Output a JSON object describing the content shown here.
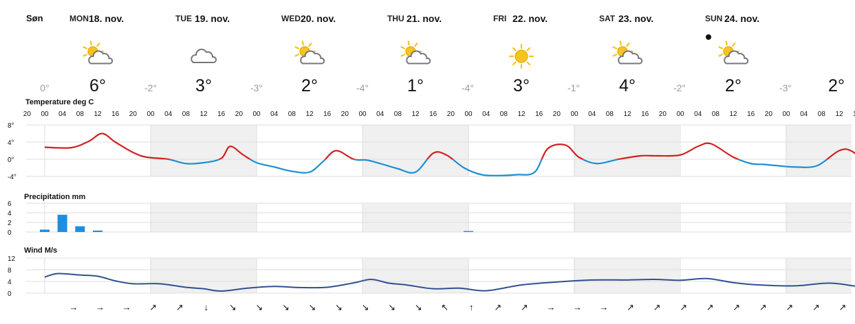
{
  "site_label": "Søn",
  "colors": {
    "temp_warm": "#d21f1f",
    "temp_cold": "#1e8fd0",
    "precip": "#1e8fe0",
    "wind": "#2f4f8f",
    "alt_band": "#f0f0f0",
    "grid": "#dedede",
    "sun": "#f7c320",
    "cloud": "#777777"
  },
  "days": [
    {
      "name": "MON",
      "date": "18. nov.",
      "icon": "partly-cloudy-icon",
      "min": "0°",
      "max": "6°"
    },
    {
      "name": "TUE",
      "date": "19. nov.",
      "icon": "cloud-icon",
      "min": "-2°",
      "max": "3°"
    },
    {
      "name": "WED",
      "date": "20. nov.",
      "icon": "partly-cloudy-icon",
      "min": "-3°",
      "max": "2°"
    },
    {
      "name": "THU",
      "date": "21. nov.",
      "icon": "partly-cloudy-icon",
      "min": "-4°",
      "max": "1°"
    },
    {
      "name": "FRI",
      "date": "22. nov.",
      "icon": "sun-icon",
      "min": "-4°",
      "max": "3°"
    },
    {
      "name": "SAT",
      "date": "23. nov.",
      "icon": "partly-cloudy-icon",
      "min": "-1°",
      "max": "4°"
    },
    {
      "name": "SUN",
      "date": "24. nov.",
      "icon": "partly-cloudy-icon",
      "min": "-2°",
      "max": "2°"
    }
  ],
  "extra_temp": {
    "min": "-3°",
    "max": "2°"
  },
  "hour_ticks": [
    "20",
    "00",
    "04",
    "08",
    "12",
    "16",
    "20",
    "00",
    "04",
    "08",
    "12",
    "16",
    "20",
    "00",
    "04",
    "08",
    "12",
    "16",
    "20",
    "00",
    "04",
    "08",
    "12",
    "16",
    "20",
    "00",
    "04",
    "08",
    "12",
    "16",
    "20",
    "00",
    "04",
    "08",
    "12",
    "16",
    "20",
    "00",
    "04",
    "08",
    "12",
    "16",
    "20",
    "00",
    "04",
    "08",
    "12",
    "16"
  ],
  "wind_directions": [
    "→",
    "→",
    "→",
    "↗",
    "↗",
    "↓",
    "↘",
    "↘",
    "↘",
    "↘",
    "↘",
    "↘",
    "↘",
    "↘",
    "↖",
    "↑",
    "↗",
    "↗",
    "→",
    "→",
    "→",
    "↗",
    "↗",
    "↗",
    "↗",
    "↗",
    "↗",
    "↗",
    "↗",
    "↗",
    "↗",
    "↑",
    "↑",
    "↘"
  ],
  "chart_data": [
    {
      "type": "line",
      "title": "Temperature deg C",
      "x_unit": "hours from 00:00 Mon 18. nov.",
      "ylim": [
        -4,
        8
      ],
      "yticks": [
        "8°",
        "4°",
        "0°",
        "-4°"
      ],
      "x": [
        -4,
        0,
        6,
        10,
        13,
        16,
        20,
        23,
        28,
        32,
        36,
        40,
        42,
        45,
        48,
        52,
        56,
        60,
        63,
        66,
        70,
        73,
        76,
        80,
        84,
        88,
        91,
        95,
        99,
        103,
        107,
        111,
        114,
        118,
        121,
        125,
        130,
        135,
        139,
        144,
        148,
        151,
        156,
        160,
        163,
        166,
        170,
        175,
        180,
        183,
        187,
        190,
        194,
        198,
        204,
        208,
        212
      ],
      "values": [
        2.5,
        2.8,
        2.7,
        4.2,
        6.0,
        4.0,
        1.6,
        0.5,
        0.0,
        -1.0,
        -0.8,
        0.2,
        3.0,
        1.0,
        -0.8,
        -1.8,
        -2.8,
        -3.0,
        -0.6,
        2.0,
        0.0,
        -0.2,
        -1.0,
        -2.2,
        -3.0,
        1.4,
        1.0,
        -2.0,
        -3.6,
        -3.8,
        -3.6,
        -3.0,
        2.5,
        3.3,
        0.5,
        -1.0,
        0.0,
        0.8,
        0.8,
        1.0,
        3.0,
        3.6,
        0.5,
        -1.0,
        -1.2,
        -1.5,
        -1.8,
        -1.5,
        2.0,
        1.8,
        -1.9,
        -2.2,
        -2.4,
        -2.6,
        -2.8,
        -1.2,
        1.8
      ]
    },
    {
      "type": "bar",
      "title": "Precipitation mm",
      "x_unit": "hours from 00:00 Mon 18. nov.",
      "ylim": [
        0,
        6
      ],
      "yticks": [
        "6",
        "4",
        "2",
        "0"
      ],
      "x": [
        -8,
        -4,
        0,
        4,
        8,
        12,
        96
      ],
      "values": [
        0.8,
        2.0,
        0.5,
        3.6,
        1.2,
        0.3,
        0.2
      ]
    },
    {
      "type": "line",
      "title": "Wind M/s",
      "x_unit": "hours from 00:00 Mon 18. nov.",
      "ylim": [
        0,
        12
      ],
      "yticks": [
        "12",
        "8",
        "4",
        "0"
      ],
      "x": [
        -8,
        -4,
        0,
        3,
        8,
        12,
        16,
        20,
        26,
        32,
        36,
        40,
        46,
        52,
        58,
        64,
        70,
        74,
        78,
        82,
        88,
        94,
        100,
        108,
        116,
        124,
        132,
        138,
        144,
        150,
        156,
        162,
        170,
        178,
        186,
        194,
        202,
        210
      ],
      "values": [
        8.0,
        6.5,
        5.5,
        6.7,
        6.2,
        5.8,
        4.2,
        3.2,
        3.2,
        2.0,
        1.5,
        0.7,
        1.7,
        2.3,
        1.9,
        2.0,
        3.5,
        4.7,
        3.4,
        2.8,
        1.5,
        1.7,
        0.8,
        2.8,
        3.8,
        4.5,
        4.5,
        4.7,
        4.4,
        5.0,
        3.6,
        2.8,
        2.5,
        3.4,
        2.0,
        2.0,
        1.7,
        0.8
      ]
    }
  ]
}
